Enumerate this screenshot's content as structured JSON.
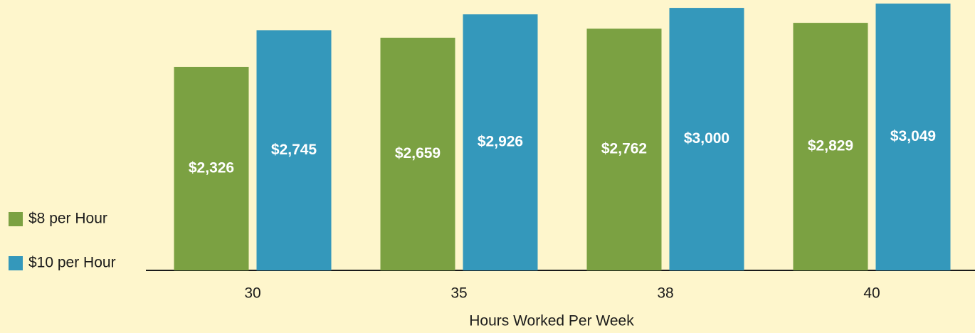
{
  "chart_data": {
    "type": "bar",
    "x_label": "Hours Worked Per Week",
    "categories": [
      "30",
      "35",
      "38",
      "40"
    ],
    "series": [
      {
        "name": "$8 per Hour",
        "color": "#7ba142",
        "values": [
          2326,
          2659,
          2762,
          2829
        ],
        "value_labels": [
          "$2,326",
          "$2,659",
          "$2,762",
          "$2,829"
        ]
      },
      {
        "name": "$10 per Hour",
        "color": "#3498bb",
        "values": [
          2745,
          2926,
          3000,
          3049
        ],
        "value_labels": [
          "$2,745",
          "$2,926",
          "$3,000",
          "$3,049"
        ]
      }
    ],
    "ylim": [
      0,
      3090
    ],
    "legend": "left"
  }
}
